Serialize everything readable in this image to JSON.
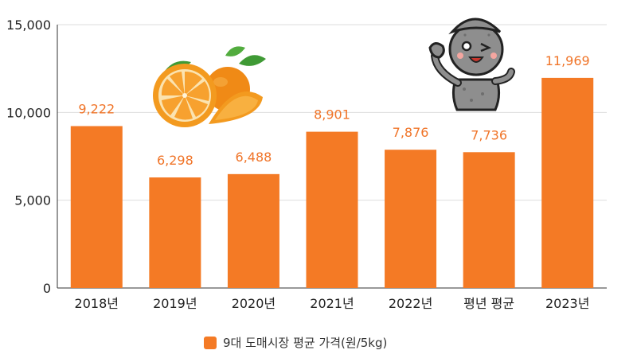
{
  "chart_data": {
    "type": "bar",
    "categories": [
      "2018년",
      "2019년",
      "2020년",
      "2021년",
      "2022년",
      "평년 평균",
      "2023년"
    ],
    "series": [
      {
        "name": "9대 도매시장 평균 가격(원/5kg)",
        "values": [
          9222,
          6298,
          6488,
          8901,
          7876,
          7736,
          11969
        ]
      }
    ],
    "data_labels": [
      "9,222",
      "6,298",
      "6,488",
      "8,901",
      "7,876",
      "7,736",
      "11,969"
    ],
    "yticks": [
      {
        "value": 0,
        "label": "0"
      },
      {
        "value": 5000,
        "label": "5,000"
      },
      {
        "value": 10000,
        "label": "10,000"
      },
      {
        "value": 15000,
        "label": "15,000"
      }
    ],
    "ylim": [
      0,
      15000
    ],
    "grid": true,
    "legend_position": "bottom-center",
    "colors": {
      "bar": "#F47A25",
      "label": "#F07428",
      "grid": "#DDDDDD"
    }
  },
  "decorations": {
    "oranges_image": "tangerines-illustration",
    "mascot_image": "stone-grandfather-mascot-waving"
  }
}
